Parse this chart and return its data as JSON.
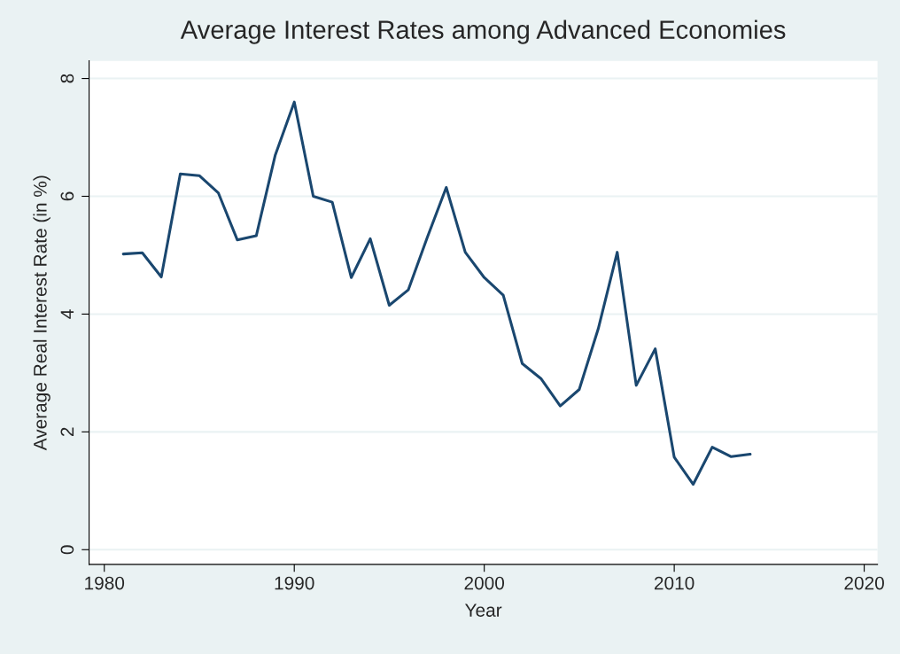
{
  "chart_data": {
    "type": "line",
    "title": "Average Interest Rates among Advanced Economies",
    "xlabel": "Year",
    "ylabel": "Average Real Interest Rate (in %)",
    "x": [
      1981,
      1982,
      1983,
      1984,
      1985,
      1986,
      1987,
      1988,
      1989,
      1990,
      1991,
      1992,
      1993,
      1994,
      1995,
      1996,
      1997,
      1998,
      1999,
      2000,
      2001,
      2002,
      2003,
      2004,
      2005,
      2006,
      2007,
      2008,
      2009,
      2010,
      2011,
      2012,
      2013,
      2014
    ],
    "series": [
      {
        "color": "#1a476f",
        "values": [
          5.02,
          5.04,
          4.63,
          6.38,
          6.35,
          6.06,
          5.26,
          5.33,
          6.7,
          7.6,
          6.0,
          5.9,
          4.62,
          5.28,
          4.15,
          4.41,
          5.3,
          6.15,
          5.05,
          4.62,
          4.32,
          3.16,
          2.9,
          2.44,
          2.72,
          3.75,
          5.05,
          2.79,
          3.41,
          1.57,
          1.11,
          1.74,
          1.58,
          1.62
        ]
      }
    ],
    "xlim": [
      1979.2,
      2020.7
    ],
    "ylim": [
      -0.25,
      8.3
    ],
    "xticks": [
      1980,
      1990,
      2000,
      2010,
      2020
    ],
    "yticks": [
      0,
      2,
      4,
      6,
      8
    ],
    "grid": "y",
    "legend": false,
    "marker": "none",
    "line_style": "solid"
  }
}
